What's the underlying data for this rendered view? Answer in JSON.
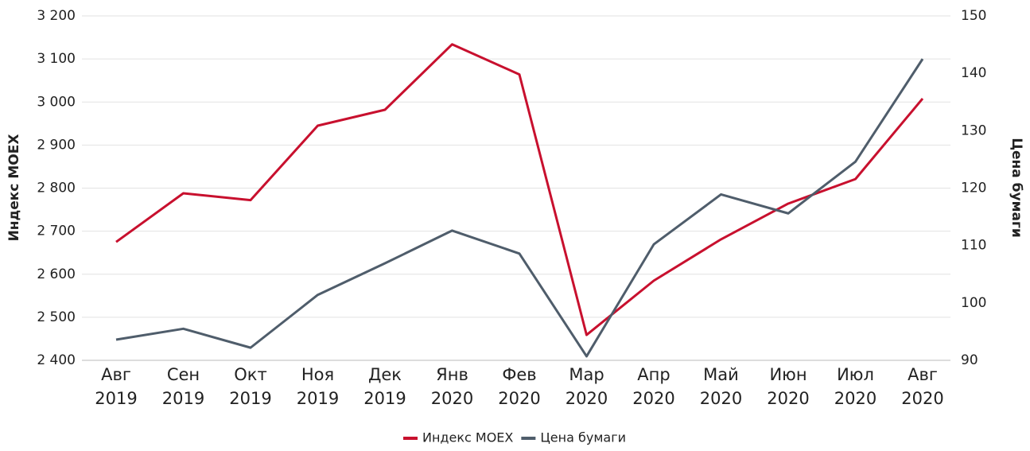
{
  "chart_data": {
    "type": "line",
    "categories": [
      "Авг 2019",
      "Сен 2019",
      "Окт 2019",
      "Ноя 2019",
      "Дек 2019",
      "Янв 2020",
      "Фев 2020",
      "Мар 2020",
      "Апр 2020",
      "Май 2020",
      "Июн 2020",
      "Июл 2020",
      "Авг 2020"
    ],
    "y_label": "Индекс MOEX",
    "y2_label": "Цена бумаги",
    "series": [
      {
        "name": "Индекс MOEX",
        "color": "#c8102e",
        "axis": "y",
        "values": [
          2675,
          2788,
          2772,
          2945,
          2982,
          3134,
          3064,
          2459,
          2585,
          2681,
          2764,
          2821,
          3008
        ]
      },
      {
        "name": "Цена бумаги",
        "color": "#4f5d6b",
        "axis": "y2",
        "values": [
          93.6,
          95.5,
          92.2,
          101.4,
          106.9,
          112.6,
          108.6,
          90.7,
          110.2,
          118.9,
          115.6,
          124.6,
          142.5
        ]
      }
    ],
    "ylim": [
      2400,
      3200
    ],
    "yticks": [
      {
        "value": 2400,
        "label": "2 400"
      },
      {
        "value": 2500,
        "label": "2 500"
      },
      {
        "value": 2600,
        "label": "2 600"
      },
      {
        "value": 2700,
        "label": "2 700"
      },
      {
        "value": 2800,
        "label": "2 800"
      },
      {
        "value": 2900,
        "label": "2 900"
      },
      {
        "value": 3000,
        "label": "3 000"
      },
      {
        "value": 3100,
        "label": "3 100"
      },
      {
        "value": 3200,
        "label": "3 200"
      }
    ],
    "y2lim": [
      90,
      150
    ],
    "y2ticks": [
      90,
      100,
      110,
      120,
      130,
      140,
      150
    ],
    "grid": true,
    "legend": "bottom"
  }
}
